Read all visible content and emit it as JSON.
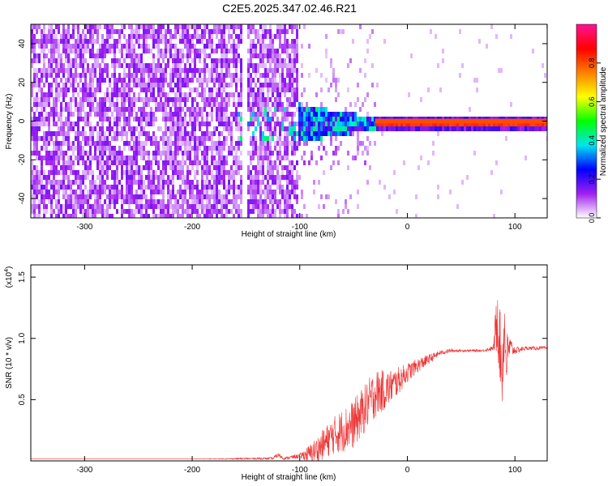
{
  "title": "C2E5.2025.347.02.46.R21",
  "chart_data": [
    {
      "type": "heatmap",
      "xlabel": "Height of straight line (km)",
      "ylabel": "Frequency (Hz)",
      "xlim": [
        -350,
        130
      ],
      "ylim": [
        -50,
        50
      ],
      "xticks": [
        -300,
        -200,
        -100,
        0,
        100
      ],
      "yticks": [
        -40,
        -20,
        0,
        20,
        40
      ],
      "colorbar": {
        "label": "Normalized spectral amplitude",
        "range": [
          0,
          1
        ],
        "ticks": [
          "0.0",
          "0.2",
          "0.4",
          "0.6",
          "0.8"
        ],
        "tick_values": [
          0,
          0.2,
          0.4,
          0.6,
          0.8
        ],
        "colors": [
          "#ffffff",
          "#a020f0",
          "#0000ff",
          "#00e5ee",
          "#00ff00",
          "#ffff00",
          "#ff7f00",
          "#ff0000",
          "#ff1493"
        ]
      },
      "regions": [
        {
          "name": "noise",
          "x": [
            -350,
            -103
          ],
          "freq": [
            -50,
            50
          ],
          "amplitude": 0.1
        },
        {
          "name": "gap",
          "x": [
            -155,
            -150
          ],
          "freq": [
            -50,
            50
          ],
          "amplitude": 0.0
        },
        {
          "name": "transition",
          "x": [
            -103,
            -30
          ],
          "freq": [
            -10,
            10
          ],
          "amplitude": 0.35
        },
        {
          "name": "tone",
          "x": [
            -30,
            130
          ],
          "freq": [
            -1,
            1
          ],
          "amplitude": 0.8
        }
      ]
    },
    {
      "type": "line",
      "xlabel": "Height of straight line (km)",
      "ylabel": "SNR (10 * v/v)",
      "scale_label": "(x10",
      "scale_exp": "4",
      "scale_close": ")",
      "xlim": [
        -350,
        130
      ],
      "ylim": [
        0,
        1.6
      ],
      "xticks": [
        -300,
        -200,
        -100,
        0,
        100
      ],
      "yticks": [
        0.5,
        1.0,
        1.5
      ],
      "ytick_labels": [
        "0.5",
        "1.0",
        "1.5"
      ],
      "color": "#ee3333",
      "series": [
        {
          "x": [
            -350,
            -200,
            -125,
            -120,
            -115,
            -100,
            -90,
            -80,
            -70,
            -60,
            -50,
            -40,
            -30,
            -20,
            -10,
            0,
            10,
            20,
            30,
            40,
            50,
            60,
            70,
            80,
            84,
            86,
            88,
            90,
            92,
            95,
            100,
            110,
            120,
            130
          ],
          "y": [
            0.015,
            0.015,
            0.02,
            0.05,
            0.02,
            0.04,
            0.06,
            0.12,
            0.2,
            0.25,
            0.3,
            0.42,
            0.55,
            0.58,
            0.64,
            0.72,
            0.78,
            0.83,
            0.88,
            0.9,
            0.9,
            0.9,
            0.9,
            0.92,
            1.2,
            0.95,
            0.7,
            1.1,
            0.82,
            0.93,
            0.9,
            0.92,
            0.92,
            0.92
          ],
          "noise": [
            0.0,
            0.0,
            0.01,
            0.02,
            0.01,
            0.02,
            0.08,
            0.12,
            0.15,
            0.18,
            0.2,
            0.2,
            0.2,
            0.16,
            0.12,
            0.08,
            0.06,
            0.04,
            0.02,
            0.015,
            0.01,
            0.01,
            0.01,
            0.02,
            0.35,
            0.3,
            0.3,
            0.3,
            0.25,
            0.1,
            0.03,
            0.015,
            0.015,
            0.015
          ]
        }
      ]
    }
  ]
}
